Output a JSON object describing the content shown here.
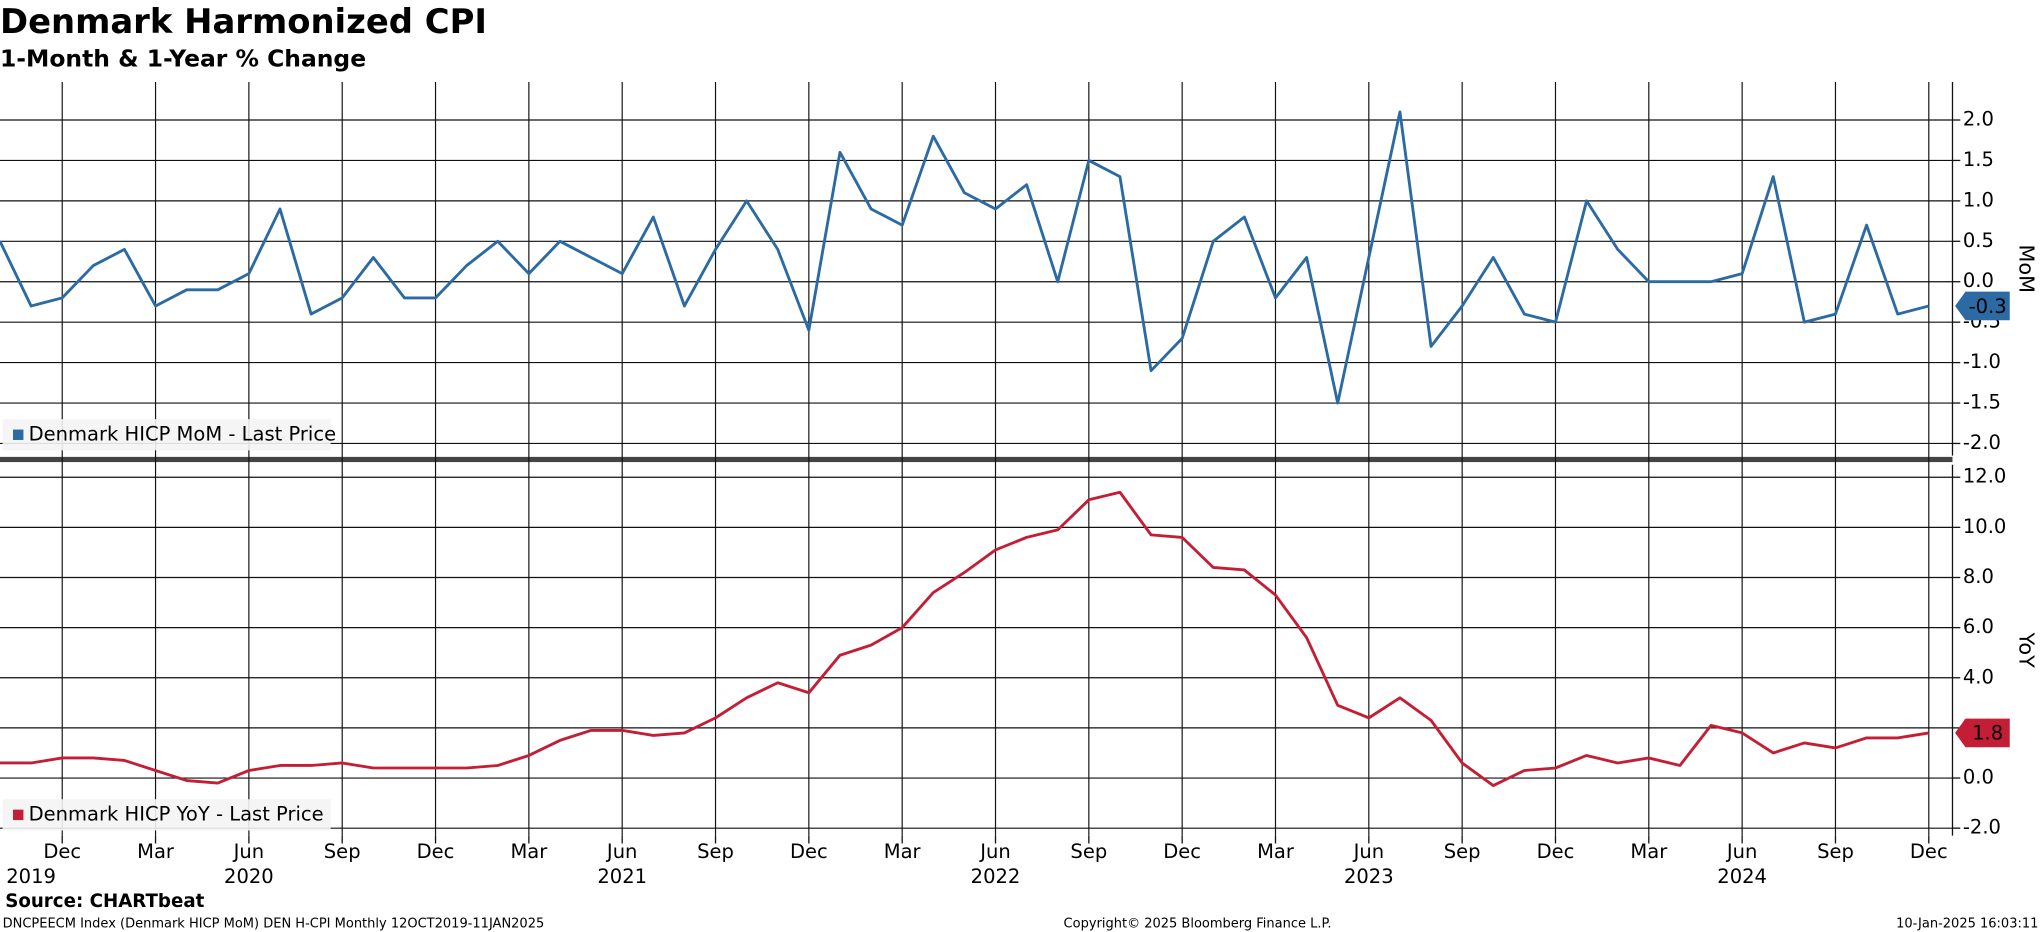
{
  "title": "Denmark Harmonized CPI",
  "subtitle": "1-Month & 1-Year % Change",
  "footer": {
    "source": "Source: CHARTbeat",
    "ticker": "DNCPEECM Index (Denmark HICP MoM) DEN H-CPI  Monthly 12OCT2019-11JAN2025",
    "copyright": "Copyright© 2025 Bloomberg Finance L.P.",
    "timestamp": "10-Jan-2025 16:03:11"
  },
  "chart_data": [
    {
      "type": "line",
      "ylabel": "MoM",
      "grid": true,
      "legend": "bottom-left",
      "x": [
        "2019-10",
        "2019-11",
        "2019-12",
        "2020-01",
        "2020-02",
        "2020-03",
        "2020-04",
        "2020-05",
        "2020-06",
        "2020-07",
        "2020-08",
        "2020-09",
        "2020-10",
        "2020-11",
        "2020-12",
        "2021-01",
        "2021-02",
        "2021-03",
        "2021-04",
        "2021-05",
        "2021-06",
        "2021-07",
        "2021-08",
        "2021-09",
        "2021-10",
        "2021-11",
        "2021-12",
        "2022-01",
        "2022-02",
        "2022-03",
        "2022-04",
        "2022-05",
        "2022-06",
        "2022-07",
        "2022-08",
        "2022-09",
        "2022-10",
        "2022-11",
        "2022-12",
        "2023-01",
        "2023-02",
        "2023-03",
        "2023-04",
        "2023-05",
        "2023-06",
        "2023-07",
        "2023-08",
        "2023-09",
        "2023-10",
        "2023-11",
        "2023-12",
        "2024-01",
        "2024-02",
        "2024-03",
        "2024-04",
        "2024-05",
        "2024-06",
        "2024-07",
        "2024-08",
        "2024-09",
        "2024-10",
        "2024-11",
        "2024-12"
      ],
      "series": [
        {
          "name": "Denmark HICP MoM - Last Price",
          "color": "#2b6aa3",
          "values": [
            0.5,
            -0.3,
            -0.2,
            0.2,
            0.4,
            -0.3,
            -0.1,
            -0.1,
            0.1,
            0.9,
            -0.4,
            -0.2,
            0.3,
            -0.2,
            -0.2,
            0.2,
            0.5,
            0.1,
            0.5,
            0.3,
            0.1,
            0.8,
            -0.3,
            0.4,
            1.0,
            0.4,
            -0.6,
            1.6,
            0.9,
            0.7,
            1.8,
            1.1,
            0.9,
            1.2,
            0.0,
            1.5,
            1.3,
            -1.1,
            -0.7,
            0.5,
            0.8,
            -0.2,
            0.3,
            -1.5,
            0.3,
            2.1,
            -0.8,
            -0.3,
            0.3,
            -0.4,
            -0.5,
            1.0,
            0.4,
            0.0,
            0.0,
            0.0,
            0.1,
            1.3,
            -0.5,
            -0.4,
            0.7,
            -0.4,
            -0.3
          ]
        }
      ],
      "ylim": [
        -2.15,
        2.47
      ],
      "yticks": [
        {
          "value": -2,
          "label": "-2.0"
        },
        -1.5,
        {
          "value": -1,
          "label": "-1.0"
        },
        -0.5,
        {
          "value": 0,
          "label": "0.0"
        },
        0.5,
        {
          "value": 1,
          "label": "1.0"
        },
        1.5,
        {
          "value": 2,
          "label": "2.0"
        }
      ]
    },
    {
      "type": "line",
      "ylabel": "YoY",
      "grid": true,
      "legend": "bottom-left",
      "x": [
        "2019-10",
        "2019-11",
        "2019-12",
        "2020-01",
        "2020-02",
        "2020-03",
        "2020-04",
        "2020-05",
        "2020-06",
        "2020-07",
        "2020-08",
        "2020-09",
        "2020-10",
        "2020-11",
        "2020-12",
        "2021-01",
        "2021-02",
        "2021-03",
        "2021-04",
        "2021-05",
        "2021-06",
        "2021-07",
        "2021-08",
        "2021-09",
        "2021-10",
        "2021-11",
        "2021-12",
        "2022-01",
        "2022-02",
        "2022-03",
        "2022-04",
        "2022-05",
        "2022-06",
        "2022-07",
        "2022-08",
        "2022-09",
        "2022-10",
        "2022-11",
        "2022-12",
        "2023-01",
        "2023-02",
        "2023-03",
        "2023-04",
        "2023-05",
        "2023-06",
        "2023-07",
        "2023-08",
        "2023-09",
        "2023-10",
        "2023-11",
        "2023-12",
        "2024-01",
        "2024-02",
        "2024-03",
        "2024-04",
        "2024-05",
        "2024-06",
        "2024-07",
        "2024-08",
        "2024-09",
        "2024-10",
        "2024-11",
        "2024-12"
      ],
      "series": [
        {
          "name": "Denmark HICP YoY - Last Price",
          "color": "#c41e36",
          "values": [
            0.6,
            0.6,
            0.8,
            0.8,
            0.7,
            0.3,
            -0.1,
            -0.2,
            0.3,
            0.5,
            0.5,
            0.6,
            0.4,
            0.4,
            0.4,
            0.4,
            0.5,
            0.9,
            1.5,
            1.9,
            1.9,
            1.7,
            1.8,
            2.4,
            3.2,
            3.8,
            3.4,
            4.9,
            5.3,
            6.0,
            7.4,
            8.2,
            9.1,
            9.6,
            9.9,
            11.1,
            11.4,
            9.7,
            9.6,
            8.4,
            8.3,
            7.3,
            5.6,
            2.9,
            2.4,
            3.2,
            2.3,
            0.6,
            -0.3,
            0.3,
            0.4,
            0.9,
            0.6,
            0.8,
            0.5,
            2.1,
            1.8,
            1.0,
            1.4,
            1.2,
            1.6,
            1.6,
            1.8
          ]
        }
      ],
      "ylim": [
        -2.3,
        12.5
      ],
      "yticks": [
        {
          "value": -2,
          "label": "-2.0"
        },
        {
          "value": 0,
          "label": "0.0"
        },
        {
          "value": 2,
          "label": "2.0"
        },
        {
          "value": 4,
          "label": "4.0"
        },
        {
          "value": 6,
          "label": "6.0"
        },
        {
          "value": 8,
          "label": "8.0"
        },
        {
          "value": 10,
          "label": "10.0"
        },
        {
          "value": 12,
          "label": "12.0"
        }
      ],
      "xticks": [
        {
          "value": "2019-12",
          "label": "Dec"
        },
        {
          "value": "2020-03",
          "label": "Mar"
        },
        {
          "value": "2020-06",
          "label": "Jun"
        },
        {
          "value": "2020-09",
          "label": "Sep"
        },
        {
          "value": "2020-12",
          "label": "Dec"
        },
        {
          "value": "2021-03",
          "label": "Mar"
        },
        {
          "value": "2021-06",
          "label": "Jun"
        },
        {
          "value": "2021-09",
          "label": "Sep"
        },
        {
          "value": "2021-12",
          "label": "Dec"
        },
        {
          "value": "2022-03",
          "label": "Mar"
        },
        {
          "value": "2022-06",
          "label": "Jun"
        },
        {
          "value": "2022-09",
          "label": "Sep"
        },
        {
          "value": "2022-12",
          "label": "Dec"
        },
        {
          "value": "2023-03",
          "label": "Mar"
        },
        {
          "value": "2023-06",
          "label": "Jun"
        },
        {
          "value": "2023-09",
          "label": "Sep"
        },
        {
          "value": "2023-12",
          "label": "Dec"
        },
        {
          "value": "2024-03",
          "label": "Mar"
        },
        {
          "value": "2024-06",
          "label": "Jun"
        },
        {
          "value": "2024-09",
          "label": "Sep"
        },
        {
          "value": "2024-12",
          "label": "Dec"
        }
      ],
      "year_labels": [
        {
          "value": "2019-11",
          "label": "2019"
        },
        {
          "value": "2020-06",
          "label": "2020"
        },
        {
          "value": "2021-06",
          "label": "2021"
        },
        {
          "value": "2022-06",
          "label": "2022"
        },
        {
          "value": "2023-06",
          "label": "2023"
        },
        {
          "value": "2024-06",
          "label": "2024"
        }
      ]
    }
  ]
}
